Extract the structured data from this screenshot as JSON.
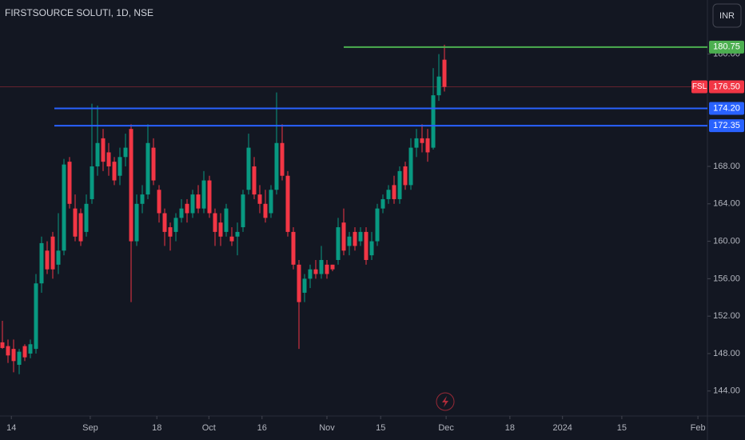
{
  "chart_data": {
    "type": "candlestick",
    "title": "FIRSTSOURCE SOLUTI, 1D, NSE",
    "currency": "INR",
    "up_color": "#089981",
    "down_color": "#f23645",
    "open": [
      149.2,
      148.8,
      148.5,
      146.8,
      148.8,
      148.0,
      148.5,
      155.5,
      159.0,
      160.5,
      157.5,
      159.0,
      168.5,
      163.5,
      163.0,
      161.0,
      164.5,
      168.0,
      171.0,
      169.5,
      168.5,
      167.0,
      169.0,
      172.0,
      160.0,
      164.0,
      165.0,
      170.0,
      165.5,
      163.0,
      161.5,
      161.0,
      162.5,
      164.0,
      163.0,
      165.0,
      163.5,
      166.5,
      163.0,
      162.0,
      161.0,
      160.5,
      160.5,
      161.5,
      165.5,
      168.0,
      165.0,
      164.0,
      163.0,
      165.5,
      170.5,
      167.0,
      161.0,
      157.5,
      154.5,
      156.0,
      157.0,
      156.5,
      157.5,
      157.5,
      158.0,
      162.0,
      159.5,
      161.0,
      160.0,
      161.0,
      158.5,
      160.0,
      163.5,
      164.5,
      166.0,
      164.5,
      168.0,
      166.0,
      170.0,
      171.0,
      171.0,
      170.0,
      175.6,
      179.4
    ],
    "high": [
      151.5,
      149.5,
      149.5,
      148.5,
      149.0,
      149.5,
      156.5,
      160.5,
      160.0,
      161.0,
      163.0,
      168.8,
      169.0,
      165.0,
      163.5,
      165.0,
      174.7,
      174.5,
      172.0,
      170.5,
      169.0,
      170.0,
      171.5,
      172.5,
      165.0,
      166.0,
      172.5,
      171.0,
      166.0,
      163.5,
      162.0,
      163.0,
      164.5,
      164.5,
      165.5,
      166.0,
      167.5,
      167.0,
      163.5,
      163.0,
      164.0,
      161.5,
      162.0,
      165.5,
      171.5,
      169.0,
      166.0,
      165.5,
      166.0,
      175.9,
      172.5,
      167.5,
      161.5,
      158.0,
      156.5,
      157.5,
      158.0,
      159.5,
      158.0,
      157.5,
      162.5,
      163.5,
      161.0,
      161.5,
      161.5,
      161.5,
      161.0,
      164.0,
      165.0,
      166.0,
      167.0,
      168.0,
      168.5,
      171.0,
      172.0,
      172.5,
      172.0,
      178.5,
      180.0,
      181.0
    ],
    "low": [
      148.5,
      147.0,
      146.0,
      145.8,
      147.2,
      147.5,
      148.0,
      154.5,
      156.5,
      156.0,
      156.5,
      158.5,
      163.5,
      160.0,
      159.5,
      160.5,
      164.0,
      167.0,
      167.5,
      167.0,
      166.0,
      166.0,
      168.0,
      153.5,
      159.5,
      163.0,
      164.5,
      166.0,
      162.0,
      159.5,
      159.0,
      160.0,
      162.0,
      162.0,
      162.5,
      163.0,
      163.0,
      162.5,
      159.5,
      159.5,
      160.5,
      159.5,
      158.5,
      161.0,
      165.0,
      164.5,
      163.0,
      162.0,
      162.5,
      165.0,
      166.5,
      160.5,
      157.0,
      148.5,
      153.5,
      155.0,
      156.0,
      156.0,
      156.0,
      156.8,
      157.5,
      158.5,
      158.5,
      159.0,
      159.5,
      157.5,
      158.0,
      159.5,
      163.0,
      164.0,
      164.0,
      164.0,
      165.5,
      165.5,
      169.0,
      169.5,
      168.5,
      169.8,
      175.0,
      176.0
    ],
    "close": [
      148.6,
      147.8,
      147.2,
      148.2,
      147.6,
      149.0,
      155.5,
      159.8,
      157.0,
      157.0,
      159.0,
      168.2,
      164.0,
      160.5,
      160.0,
      164.0,
      168.0,
      170.5,
      168.5,
      168.0,
      166.5,
      169.0,
      170.0,
      160.0,
      164.0,
      165.0,
      170.5,
      166.5,
      163.0,
      161.0,
      160.5,
      162.5,
      163.5,
      163.0,
      165.0,
      163.5,
      166.5,
      163.0,
      161.0,
      160.5,
      163.5,
      160.0,
      161.0,
      165.0,
      170.0,
      165.0,
      164.0,
      162.5,
      165.5,
      170.5,
      167.0,
      161.0,
      157.5,
      153.5,
      156.0,
      157.0,
      156.5,
      158.0,
      156.5,
      157.0,
      161.5,
      159.0,
      160.5,
      159.5,
      161.0,
      158.0,
      160.0,
      163.5,
      164.5,
      165.5,
      164.5,
      167.5,
      166.0,
      170.0,
      171.0,
      170.5,
      169.5,
      175.6,
      177.6,
      176.5
    ],
    "ylim": [
      141.33,
      185.78
    ],
    "yticks": [
      {
        "value": 144,
        "label": "144.00"
      },
      {
        "value": 148,
        "label": "148.00"
      },
      {
        "value": 152,
        "label": "152.00"
      },
      {
        "value": 156,
        "label": "156.00"
      },
      {
        "value": 160,
        "label": "160.00"
      },
      {
        "value": 164,
        "label": "164.00"
      },
      {
        "value": 168,
        "label": "168.00"
      },
      {
        "value": 180,
        "label": "180.00"
      }
    ],
    "xlim": [
      -0.43,
      126
    ],
    "xticks": [
      {
        "value": 1.6,
        "label": "14"
      },
      {
        "value": 15.7,
        "label": "Sep"
      },
      {
        "value": 27.6,
        "label": "18"
      },
      {
        "value": 36.9,
        "label": "Oct"
      },
      {
        "value": 46.4,
        "label": "16"
      },
      {
        "value": 58,
        "label": "Nov"
      },
      {
        "value": 67.6,
        "label": "15"
      },
      {
        "value": 79.3,
        "label": "Dec"
      },
      {
        "value": 90.7,
        "label": "18"
      },
      {
        "value": 100.1,
        "label": "2024"
      },
      {
        "value": 110.7,
        "label": "15"
      },
      {
        "value": 124.3,
        "label": "Feb"
      }
    ],
    "levels": [
      {
        "value": 180.75,
        "label": "180.75",
        "color": "#4caf50"
      },
      {
        "value": 174.2,
        "label": "174.20",
        "color": "#2962ff"
      },
      {
        "value": 172.35,
        "label": "172.35",
        "color": "#2962ff"
      }
    ],
    "last_price": {
      "value": 176.5,
      "label": "176.50",
      "symbol": "FSL",
      "color": "#f23645"
    }
  }
}
